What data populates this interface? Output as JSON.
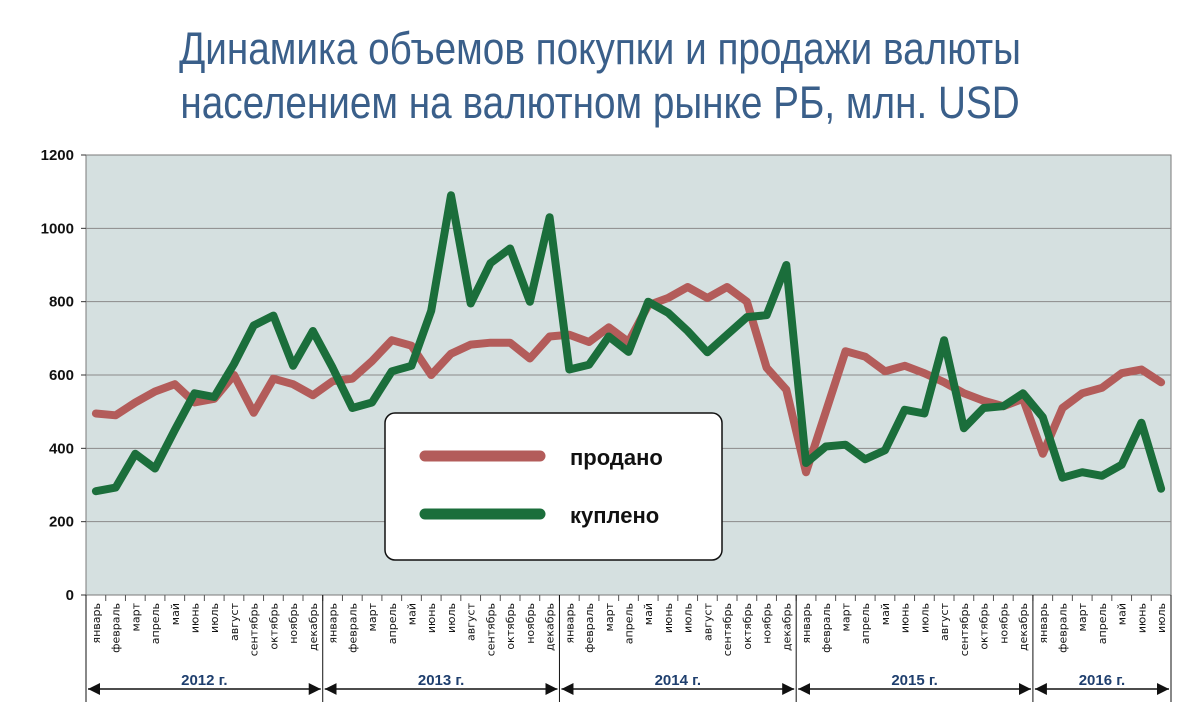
{
  "chart_data": {
    "type": "line",
    "title_lines": [
      "Динамика объемов покупки и продажи валюты",
      "населением на валютном рынке РБ, млн. USD"
    ],
    "ylim": [
      0,
      1200
    ],
    "yticks": [
      0,
      200,
      400,
      600,
      800,
      1000,
      1200
    ],
    "grid": "horizontal",
    "legend_position": "center",
    "categories": [
      "январь",
      "февраль",
      "март",
      "апрель",
      "май",
      "июнь",
      "июль",
      "август",
      "сентябрь",
      "октябрь",
      "ноябрь",
      "декабрь",
      "январь",
      "февраль",
      "март",
      "апрель",
      "май",
      "июнь",
      "июль",
      "август",
      "сентябрь",
      "октябрь",
      "ноябрь",
      "декабрь",
      "январь",
      "февраль",
      "март",
      "апрель",
      "май",
      "июнь",
      "июль",
      "август",
      "сентябрь",
      "октябрь",
      "ноябрь",
      "декабрь",
      "январь",
      "февраль",
      "март",
      "апрель",
      "май",
      "июнь",
      "июль",
      "август",
      "сентябрь",
      "октябрь",
      "ноябрь",
      "декабрь",
      "январь",
      "февраль",
      "март",
      "апрель",
      "май",
      "июнь",
      "июль"
    ],
    "years": [
      {
        "label": "2012 г.",
        "start": 0,
        "count": 12
      },
      {
        "label": "2013 г.",
        "start": 12,
        "count": 12
      },
      {
        "label": "2014 г.",
        "start": 24,
        "count": 12
      },
      {
        "label": "2015 г.",
        "start": 36,
        "count": 12
      },
      {
        "label": "2016 г.",
        "start": 48,
        "count": 7
      }
    ],
    "series": [
      {
        "name": "продано",
        "color": "#b35c5a",
        "values": [
          495,
          490,
          525,
          555,
          575,
          525,
          535,
          600,
          497,
          590,
          575,
          545,
          583,
          590,
          638,
          695,
          680,
          600,
          658,
          683,
          688,
          688,
          645,
          705,
          710,
          690,
          730,
          690,
          790,
          810,
          840,
          810,
          840,
          800,
          620,
          560,
          335,
          500,
          665,
          650,
          610,
          625,
          605,
          580,
          550,
          530,
          515,
          535,
          385,
          510,
          550,
          565,
          605,
          615,
          580
        ]
      },
      {
        "name": "куплено",
        "color": "#1b6e3b",
        "values": [
          283,
          293,
          385,
          345,
          450,
          550,
          540,
          630,
          735,
          762,
          625,
          720,
          620,
          510,
          525,
          610,
          625,
          775,
          1090,
          795,
          905,
          945,
          800,
          1030,
          615,
          628,
          705,
          663,
          800,
          770,
          720,
          662,
          710,
          758,
          763,
          900,
          360,
          405,
          410,
          370,
          395,
          505,
          495,
          695,
          455,
          510,
          515,
          550,
          485,
          320,
          335,
          325,
          355,
          470,
          290
        ]
      }
    ]
  }
}
